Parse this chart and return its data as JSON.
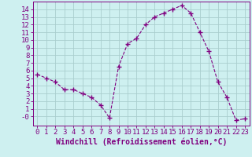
{
  "x": [
    0,
    1,
    2,
    3,
    4,
    5,
    6,
    7,
    8,
    9,
    10,
    11,
    12,
    13,
    14,
    15,
    16,
    17,
    18,
    19,
    20,
    21,
    22,
    23
  ],
  "y": [
    5.5,
    5.0,
    4.5,
    3.5,
    3.5,
    3.0,
    2.5,
    1.5,
    -0.2,
    6.5,
    9.5,
    10.2,
    12.0,
    13.0,
    13.5,
    14.0,
    14.5,
    13.5,
    11.0,
    8.5,
    4.5,
    2.5,
    -0.5,
    -0.3
  ],
  "line_color": "#800080",
  "marker": "+",
  "marker_size": 4,
  "bg_color": "#cef0f0",
  "grid_color": "#aacece",
  "xlabel": "Windchill (Refroidissement éolien,°C)",
  "xlim": [
    -0.5,
    23.5
  ],
  "ylim": [
    -1.2,
    15.0
  ],
  "yticks": [
    0,
    1,
    2,
    3,
    4,
    5,
    6,
    7,
    8,
    9,
    10,
    11,
    12,
    13,
    14
  ],
  "ytick_labels": [
    "-0",
    "1",
    "2",
    "3",
    "4",
    "5",
    "6",
    "7",
    "8",
    "9",
    "10",
    "11",
    "12",
    "13",
    "14"
  ],
  "xticks": [
    0,
    1,
    2,
    3,
    4,
    5,
    6,
    7,
    8,
    9,
    10,
    11,
    12,
    13,
    14,
    15,
    16,
    17,
    18,
    19,
    20,
    21,
    22,
    23
  ],
  "tick_color": "#800080",
  "label_color": "#800080",
  "spine_color": "#800080",
  "xlabel_fontsize": 7,
  "tick_fontsize": 6.5
}
